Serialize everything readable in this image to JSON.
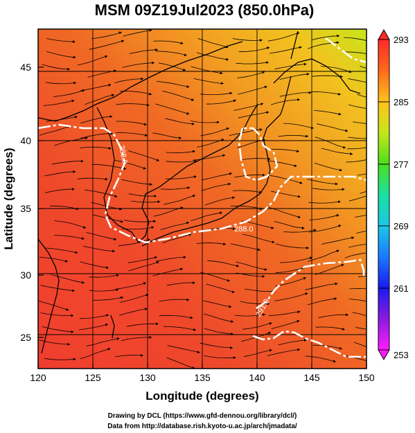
{
  "title": "MSM 09Z19Jul2023 (850.0hPa)",
  "x_axis": {
    "label": "Longitude (degrees)",
    "ticks": [
      "120",
      "125",
      "130",
      "135",
      "140",
      "145",
      "150"
    ],
    "range": [
      120,
      150
    ]
  },
  "y_axis": {
    "label": "Latitude  (degrees)",
    "ticks": [
      "25",
      "30",
      "35",
      "40",
      "45"
    ],
    "range": [
      22.5,
      47.5
    ]
  },
  "colorbar": {
    "ticks": [
      "293",
      "285",
      "277",
      "269",
      "261",
      "253"
    ],
    "range": [
      253,
      293
    ],
    "colors": [
      "#ff2a2a",
      "#ff8c1a",
      "#ffd21a",
      "#66e01a",
      "#1ae07a",
      "#1ad6d6",
      "#1a8cff",
      "#1a1aff",
      "#b01ae0",
      "#ff1aff"
    ]
  },
  "contours": [
    {
      "label": "288.0"
    },
    {
      "label": "288.0"
    },
    {
      "label": "291.0"
    }
  ],
  "credits": {
    "line1": "Drawing by DCL (https://www.gfd-dennou.org/library/dcl/)",
    "line2": "Data from http://database.rish.kyoto-u.ac.jp/arch/jmadata/"
  }
}
